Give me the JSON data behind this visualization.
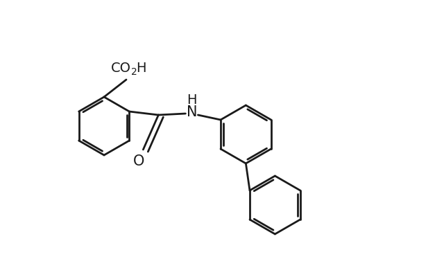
{
  "bg_color": "#ffffff",
  "line_color": "#1a1a1a",
  "line_width": 2.0,
  "dbo": 0.038,
  "shrink": 0.05,
  "font_size": 14,
  "sub_font_size": 10,
  "figsize": [
    6.4,
    3.87
  ],
  "dpi": 100,
  "xlim": [
    0.0,
    6.4
  ],
  "ylim": [
    0.0,
    3.87
  ]
}
